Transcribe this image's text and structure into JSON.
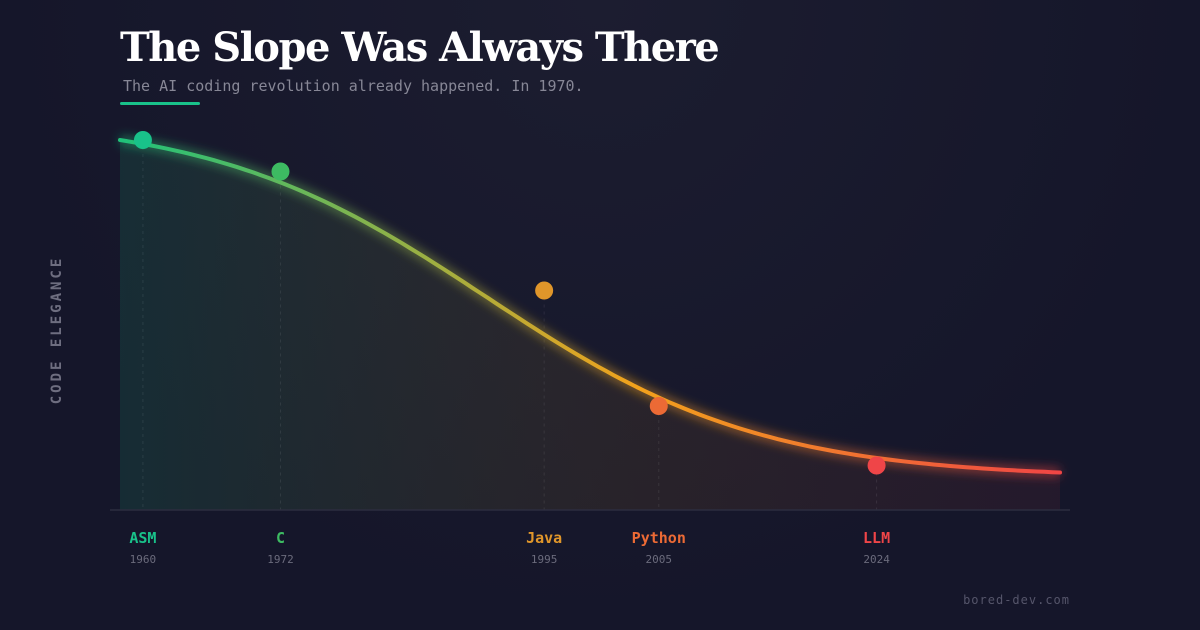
{
  "header": {
    "title": "The Slope Was Always There",
    "subtitle": "The AI coding revolution already happened. In 1970."
  },
  "footer": {
    "watermark": "bored-dev.com"
  },
  "chart_data": {
    "type": "line",
    "title": "The Slope Was Always There",
    "subtitle": "The AI coding revolution already happened. In 1970.",
    "xlabel": "",
    "ylabel": "CODE ELEGANCE",
    "grid": false,
    "legend": "none",
    "x_range": [
      1958,
      2040
    ],
    "y_range": [
      0,
      100
    ],
    "series": [
      {
        "points": [
          {
            "label": "ASM",
            "year": "1960",
            "x": 1960,
            "y": 100,
            "color": "#19c28a"
          },
          {
            "label": "C",
            "year": "1972",
            "x": 1972,
            "y": 91,
            "color": "#3dbb62"
          },
          {
            "label": "Java",
            "year": "1995",
            "x": 1995,
            "y": 57,
            "color": "#e0962a"
          },
          {
            "label": "Python",
            "year": "2005",
            "x": 2005,
            "y": 24,
            "color": "#ec6a35"
          },
          {
            "label": "LLM",
            "year": "2024",
            "x": 2024,
            "y": 7,
            "color": "#ef4548"
          }
        ]
      }
    ],
    "colors": {
      "start": "#1fc27a",
      "middle": "#f2a21c",
      "end": "#f04545",
      "axis": "#2c2d3f",
      "grid": "#2a2b3e"
    }
  }
}
